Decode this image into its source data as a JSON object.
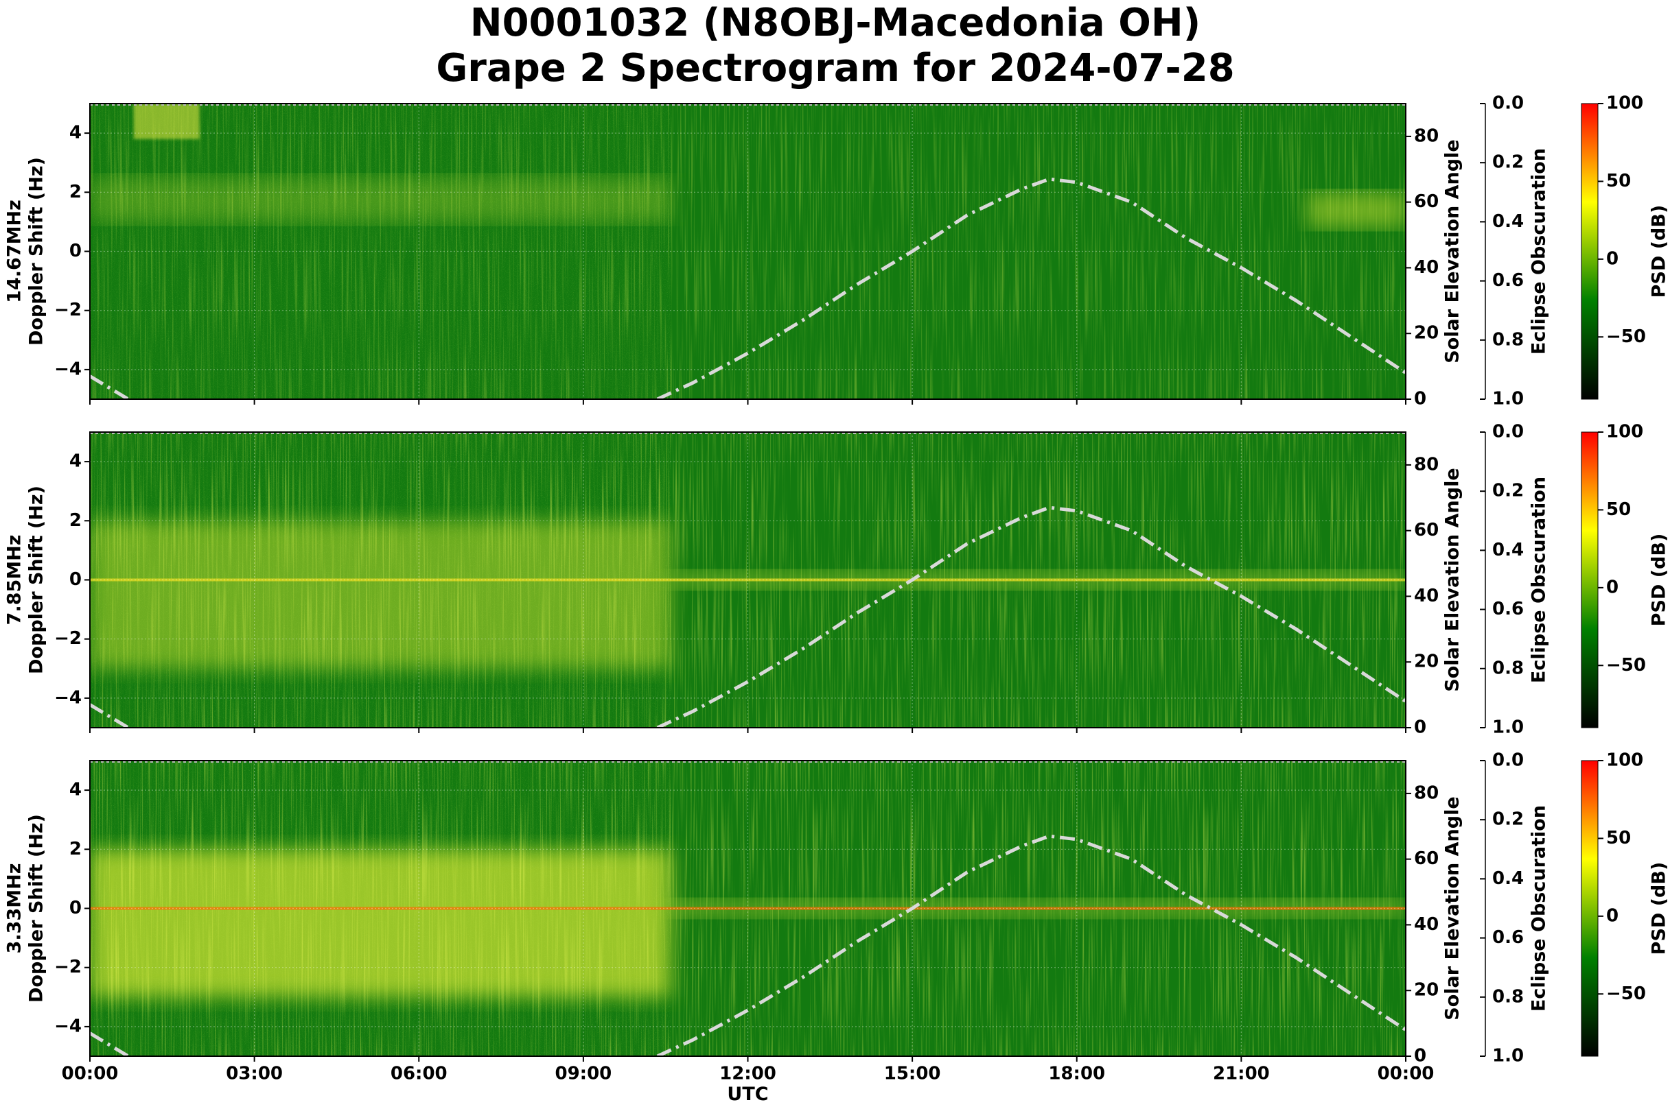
{
  "title": [
    "N0001032 (N8OBJ-Macedonia OH)",
    "Grape 2 Spectrogram for 2024-07-28"
  ],
  "chart_data": [
    {
      "type": "spectrogram",
      "ylabel": [
        "14.67MHz",
        "Doppler Shift (Hz)"
      ],
      "xlim": [
        0,
        24
      ],
      "ylim": [
        -5,
        5
      ],
      "yticks": [
        {
          "value": -4,
          "label": "−4"
        },
        {
          "value": -2,
          "label": "−2"
        },
        0,
        2,
        4
      ],
      "y2label": "Solar Elevation Angle",
      "y2lim": [
        0,
        90
      ],
      "y2ticks": [
        0,
        20,
        40,
        60,
        80
      ],
      "y3label": "Eclipse Obscuration",
      "y3lim": [
        1,
        0
      ],
      "y3ticks": [
        {
          "value": 0,
          "label": "0.0"
        },
        0.2,
        0.4,
        0.6,
        0.8,
        {
          "value": 1,
          "label": "1.0"
        }
      ],
      "colorbar": {
        "label": "PSD (dB)",
        "lim": [
          -90,
          100
        ],
        "ticks": [
          {
            "value": -50,
            "label": "−50"
          },
          0,
          50,
          100
        ],
        "colors": [
          "#000000",
          "#008000",
          "#ffff00",
          "#ff0000"
        ]
      },
      "grid": true,
      "x": [
        0,
        0.7,
        null,
        10.35,
        11,
        12,
        13,
        14,
        15,
        16,
        17,
        17.5,
        18,
        19,
        20,
        21,
        22,
        23,
        24
      ],
      "series": [
        {
          "color": "#d9d9d9",
          "axis": "y2",
          "values": [
            7,
            0,
            null,
            0,
            5,
            14,
            24,
            35,
            45,
            56,
            64,
            67,
            66,
            60,
            49,
            40,
            30,
            19,
            8
          ]
        }
      ]
    },
    {
      "type": "spectrogram",
      "ylabel": [
        "7.85MHz",
        "Doppler Shift (Hz)"
      ],
      "xlim": [
        0,
        24
      ],
      "ylim": [
        -5,
        5
      ],
      "yticks": [
        {
          "value": -4,
          "label": "−4"
        },
        {
          "value": -2,
          "label": "−2"
        },
        0,
        2,
        4
      ],
      "y2label": "Solar Elevation Angle",
      "y2lim": [
        0,
        90
      ],
      "y2ticks": [
        0,
        20,
        40,
        60,
        80
      ],
      "y3label": "Eclipse Obscuration",
      "y3lim": [
        1,
        0
      ],
      "y3ticks": [
        {
          "value": 0,
          "label": "0.0"
        },
        0.2,
        0.4,
        0.6,
        0.8,
        {
          "value": 1,
          "label": "1.0"
        }
      ],
      "colorbar": {
        "label": "PSD (dB)",
        "lim": [
          -90,
          100
        ],
        "ticks": [
          {
            "value": -50,
            "label": "−50"
          },
          0,
          50,
          100
        ],
        "colors": [
          "#000000",
          "#008000",
          "#ffff00",
          "#ff0000"
        ]
      },
      "grid": true,
      "x": [
        0,
        0.7,
        null,
        10.35,
        11,
        12,
        13,
        14,
        15,
        16,
        17,
        17.5,
        18,
        19,
        20,
        21,
        22,
        23,
        24
      ],
      "series": [
        {
          "color": "#d9d9d9",
          "axis": "y2",
          "values": [
            7,
            0,
            null,
            0,
            5,
            14,
            24,
            35,
            45,
            56,
            64,
            67,
            66,
            60,
            49,
            40,
            30,
            19,
            8
          ]
        }
      ]
    },
    {
      "type": "spectrogram",
      "ylabel": [
        "3.33MHz",
        "Doppler Shift (Hz)"
      ],
      "xlabel": "UTC",
      "xlim": [
        0,
        24
      ],
      "ylim": [
        -5,
        5
      ],
      "xticks": [
        {
          "value": 0,
          "label": "00:00"
        },
        {
          "value": 3,
          "label": "03:00"
        },
        {
          "value": 6,
          "label": "06:00"
        },
        {
          "value": 9,
          "label": "09:00"
        },
        {
          "value": 12,
          "label": "12:00"
        },
        {
          "value": 15,
          "label": "15:00"
        },
        {
          "value": 18,
          "label": "18:00"
        },
        {
          "value": 21,
          "label": "21:00"
        },
        {
          "value": 24,
          "label": "00:00"
        }
      ],
      "yticks": [
        {
          "value": -4,
          "label": "−4"
        },
        {
          "value": -2,
          "label": "−2"
        },
        0,
        2,
        4
      ],
      "y2label": "Solar Elevation Angle",
      "y2lim": [
        0,
        90
      ],
      "y2ticks": [
        0,
        20,
        40,
        60,
        80
      ],
      "y3label": "Eclipse Obscuration",
      "y3lim": [
        1,
        0
      ],
      "y3ticks": [
        {
          "value": 0,
          "label": "0.0"
        },
        0.2,
        0.4,
        0.6,
        0.8,
        {
          "value": 1,
          "label": "1.0"
        }
      ],
      "colorbar": {
        "label": "PSD (dB)",
        "lim": [
          -90,
          100
        ],
        "ticks": [
          {
            "value": -50,
            "label": "−50"
          },
          0,
          50,
          100
        ],
        "colors": [
          "#000000",
          "#008000",
          "#ffff00",
          "#ff0000"
        ]
      },
      "grid": true,
      "x": [
        0,
        0.7,
        null,
        10.35,
        11,
        12,
        13,
        14,
        15,
        16,
        17,
        17.5,
        18,
        19,
        20,
        21,
        22,
        23,
        24
      ],
      "series": [
        {
          "color": "#d9d9d9",
          "axis": "y2",
          "values": [
            7,
            0,
            null,
            0,
            5,
            14,
            24,
            35,
            45,
            56,
            64,
            67,
            66,
            60,
            49,
            40,
            30,
            19,
            8
          ]
        }
      ]
    }
  ]
}
